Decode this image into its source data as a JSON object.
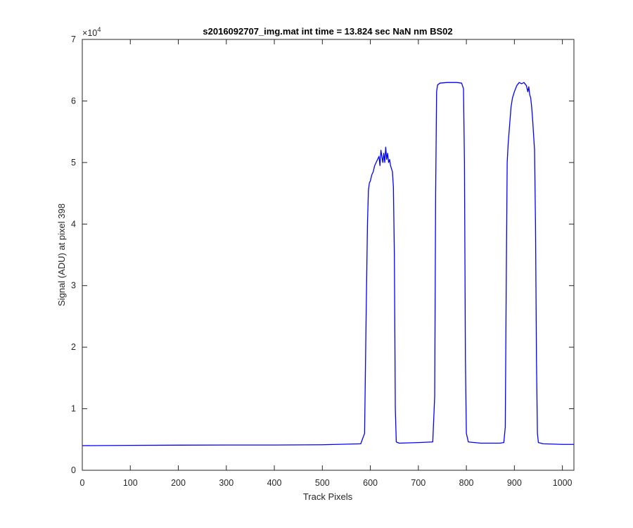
{
  "chart_data": {
    "type": "line",
    "title": "s2016092707_img.mat int time = 13.824 sec  NaN nm BS02",
    "xlabel": "Track Pixels",
    "ylabel": "Signal (ADU) at pixel 398",
    "xlim": [
      0,
      1024
    ],
    "ylim": [
      0,
      70000
    ],
    "xticks": [
      0,
      100,
      200,
      300,
      400,
      500,
      600,
      700,
      800,
      900,
      1000
    ],
    "yticks": [
      0,
      10000,
      20000,
      30000,
      40000,
      50000,
      60000,
      70000
    ],
    "ytick_labels": [
      "0",
      "1",
      "2",
      "3",
      "4",
      "5",
      "6",
      "7"
    ],
    "y_exponent": "10",
    "y_exponent_power": "4",
    "y_exponent_prefix": "×",
    "grid": false,
    "series": [
      {
        "color": "#0000ff",
        "x": [
          0,
          100,
          200,
          300,
          400,
          500,
          580,
          588,
          591,
          594,
          596,
          598,
          600,
          603,
          606,
          609,
          612,
          615,
          618,
          620,
          622,
          624,
          626,
          628,
          630,
          632,
          634,
          636,
          638,
          640,
          642,
          644,
          646,
          648,
          650,
          652,
          654,
          660,
          700,
          730,
          734,
          736,
          738,
          740,
          745,
          760,
          780,
          790,
          794,
          796,
          798,
          800,
          804,
          830,
          870,
          878,
          881,
          883,
          885,
          887,
          890,
          893,
          896,
          900,
          905,
          910,
          915,
          920,
          925,
          928,
          930,
          932,
          934,
          936,
          938,
          940,
          942,
          944,
          946,
          948,
          950,
          960,
          1000,
          1024
        ],
        "y": [
          4000,
          4050,
          4080,
          4100,
          4100,
          4150,
          4300,
          6000,
          24000,
          40000,
          45500,
          46700,
          47000,
          48000,
          48500,
          49500,
          50000,
          50500,
          51000,
          49500,
          52000,
          51000,
          50000,
          51500,
          50000,
          52500,
          50500,
          51500,
          50000,
          50500,
          49500,
          49000,
          48500,
          46000,
          35000,
          10000,
          4600,
          4400,
          4500,
          4600,
          12000,
          45000,
          61500,
          62600,
          62900,
          63000,
          63000,
          62900,
          62000,
          50000,
          18000,
          6000,
          4600,
          4400,
          4400,
          4500,
          7000,
          30000,
          50000,
          53000,
          56000,
          59000,
          60500,
          61500,
          62500,
          63000,
          62800,
          63000,
          62500,
          61500,
          62300,
          61000,
          60500,
          59000,
          57000,
          54500,
          52000,
          40000,
          18000,
          6000,
          4500,
          4300,
          4200,
          4200
        ]
      }
    ]
  }
}
